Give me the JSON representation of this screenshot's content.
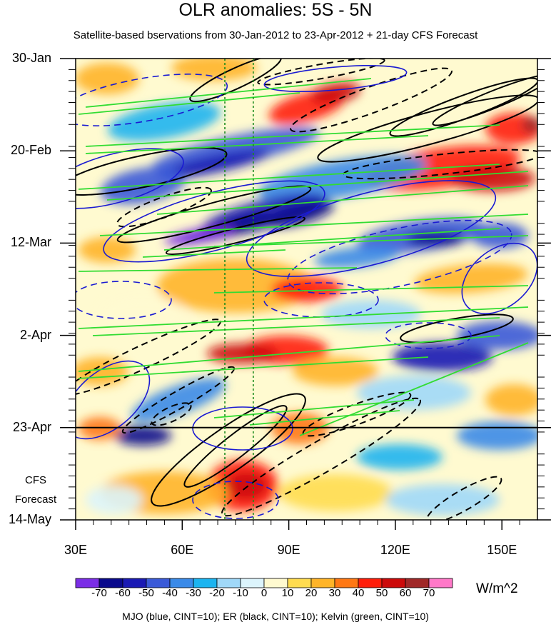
{
  "chart_data": {
    "type": "heatmap",
    "title": "OLR anomalies: 5S - 5N",
    "subtitle": "Satellite-based bservations from 30-Jan-2012 to 23-Apr-2012 + 21-day CFS Forecast",
    "x_ticks": [
      "30E",
      "60E",
      "90E",
      "120E",
      "150E"
    ],
    "x_tick_values": [
      30,
      60,
      90,
      120,
      150
    ],
    "xlim": [
      30,
      160
    ],
    "y_ticks": [
      "30-Jan",
      "20-Feb",
      "12-Mar",
      "2-Apr",
      "23-Apr",
      "14-May"
    ],
    "ylim": [
      "30-Jan-2012",
      "14-May-2012"
    ],
    "forecast_boundary": "23-Apr-2012",
    "forecast_label": [
      "CFS",
      "Forecast"
    ],
    "reference_lines_lon": [
      72,
      80
    ],
    "colorbar": {
      "labels": [
        "-70",
        "-60",
        "-50",
        "-40",
        "-30",
        "-20",
        "-10",
        "0",
        "10",
        "20",
        "30",
        "40",
        "50",
        "60",
        "70"
      ],
      "colors": [
        "#7b2ee6",
        "#0a0a8c",
        "#1a1ab4",
        "#3a5ad8",
        "#3a8ae8",
        "#1cb4f0",
        "#a0d8f8",
        "#dcf4fc",
        "#fffad0",
        "#ffdc50",
        "#ffb428",
        "#ff7814",
        "#ff1e0a",
        "#cc0a0a",
        "#a02828",
        "#ff78c8"
      ],
      "units": "W/m^2"
    },
    "legend_text": "MJO (blue, CINT=10); ER (black, CINT=10); Kelvin (green, CINT=10)",
    "series_colors": {
      "MJO": "#1a1ad2",
      "ER": "#000000",
      "Kelvin": "#32dc32"
    }
  }
}
